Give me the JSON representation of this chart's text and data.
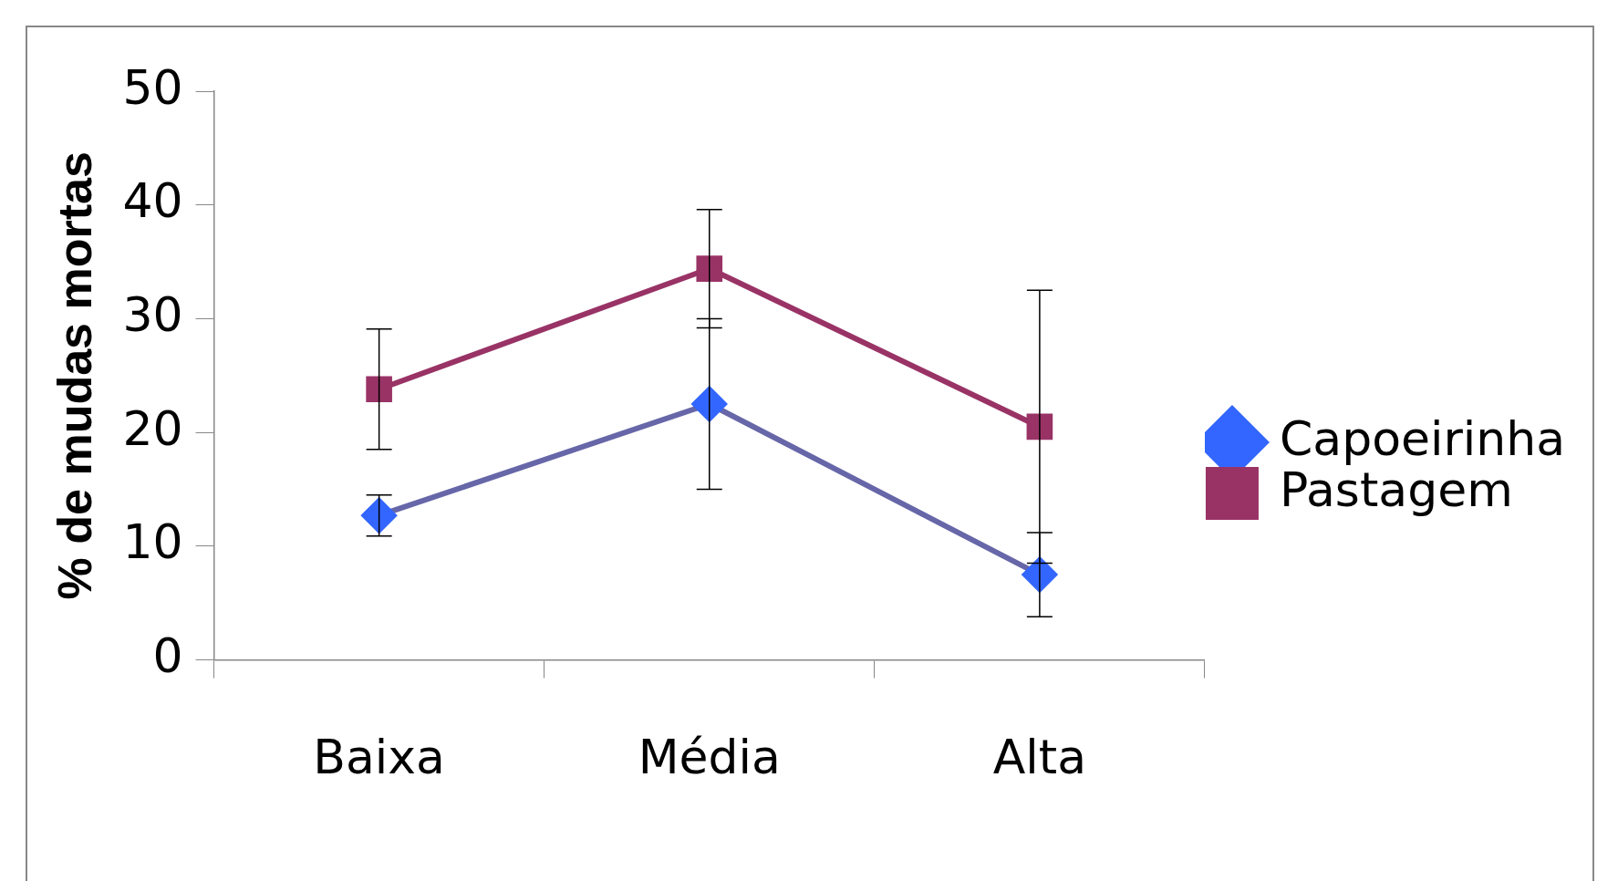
{
  "chart_data": {
    "type": "line",
    "ylabel": "% de mudas mortas",
    "categories": [
      "Baixa",
      "Média",
      "Alta"
    ],
    "series": [
      {
        "name": "Capoeirinha",
        "color": "#6666a8",
        "marker": "diamond",
        "values": [
          12.7,
          22.5,
          7.5
        ],
        "errors": [
          1.8,
          7.5,
          3.7
        ]
      },
      {
        "name": "Pastagem",
        "color": "#993366",
        "marker": "square",
        "values": [
          23.8,
          34.4,
          20.5
        ],
        "errors": [
          5.3,
          5.2,
          12
        ]
      }
    ],
    "ylim": [
      0,
      50
    ],
    "yticks": [
      0,
      10,
      20,
      30,
      40,
      50
    ],
    "grid": false,
    "legend": "right",
    "line_style": "solid"
  }
}
